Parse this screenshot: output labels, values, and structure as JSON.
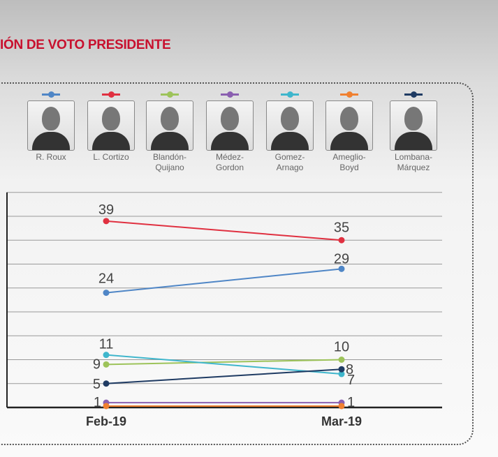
{
  "title": "IÓN DE VOTO PRESIDENTE",
  "candidates": [
    {
      "name1": "R. Roux",
      "name2": "",
      "color": "#4f86c6"
    },
    {
      "name1": "L. Cortizo",
      "name2": "",
      "color": "#e03040"
    },
    {
      "name1": "Blandón-",
      "name2": "Quijano",
      "color": "#9dc35a"
    },
    {
      "name1": "Médez-",
      "name2": "Gordon",
      "color": "#8a5fb0"
    },
    {
      "name1": "Gomez-",
      "name2": "Arnago",
      "color": "#3fb6cc"
    },
    {
      "name1": "Ameglio-",
      "name2": "Boyd",
      "color": "#f08030"
    },
    {
      "name1": "Lombana-",
      "name2": "Márquez",
      "color": "#1f3b63"
    }
  ],
  "chart_data": {
    "type": "line",
    "categories": [
      "Feb-19",
      "Mar-19"
    ],
    "ylim": [
      0,
      45
    ],
    "grid": true,
    "series": [
      {
        "name": "R. Roux",
        "color": "#4f86c6",
        "values": [
          24,
          29
        ],
        "labels": [
          "24",
          "29"
        ]
      },
      {
        "name": "L. Cortizo",
        "color": "#e03040",
        "values": [
          39,
          35
        ],
        "labels": [
          "39",
          "35"
        ]
      },
      {
        "name": "Blandón-Quijano",
        "color": "#9dc35a",
        "values": [
          9,
          10
        ],
        "labels": [
          "9",
          "10"
        ]
      },
      {
        "name": "Médez-Gordon",
        "color": "#8a5fb0",
        "values": [
          1,
          1
        ],
        "labels": [
          "1",
          "1"
        ]
      },
      {
        "name": "Gomez-Arnago",
        "color": "#3fb6cc",
        "values": [
          11,
          7
        ],
        "labels": [
          "11",
          "7"
        ]
      },
      {
        "name": "Ameglio-Boyd",
        "color": "#f08030",
        "values": [
          0.3,
          0.3
        ],
        "labels": [
          "",
          ""
        ]
      },
      {
        "name": "Lombana-Márquez",
        "color": "#1f3b63",
        "values": [
          5,
          8
        ],
        "labels": [
          "5",
          "8"
        ]
      }
    ]
  }
}
